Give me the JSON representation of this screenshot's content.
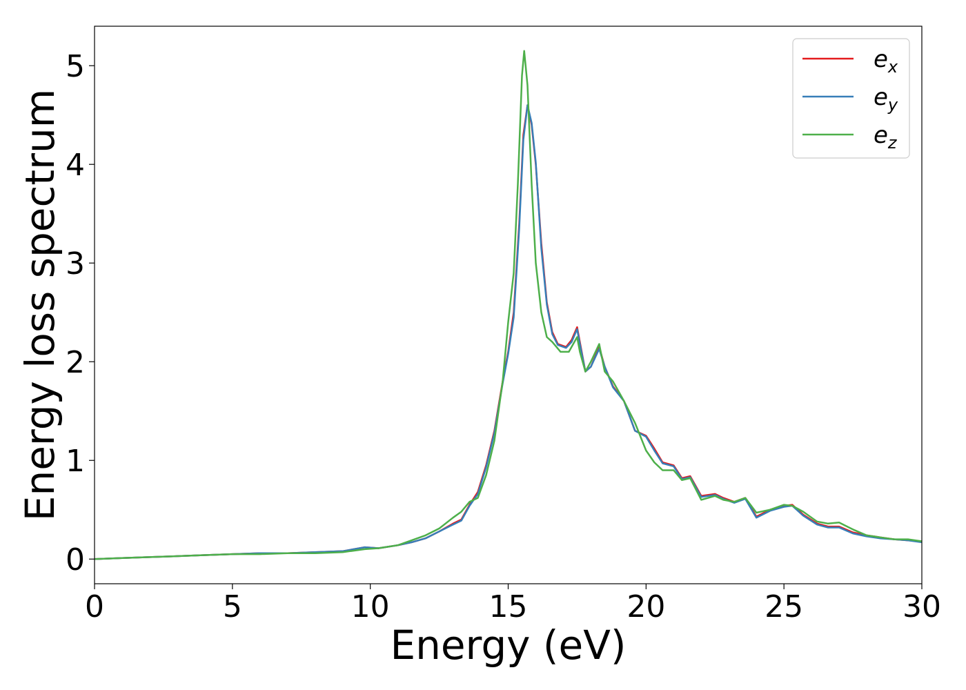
{
  "chart_data": {
    "type": "line",
    "xlabel": "Energy (eV)",
    "ylabel": "Energy loss spectrum",
    "xlim": [
      0,
      30
    ],
    "ylim": [
      -0.25,
      5.4
    ],
    "xticks": [
      0,
      5,
      10,
      15,
      20,
      25,
      30
    ],
    "yticks": [
      0,
      1,
      2,
      3,
      4,
      5
    ],
    "grid": false,
    "legend_position": "top-right",
    "series": [
      {
        "name": "e",
        "subscript": "x",
        "color": "#e41a1c",
        "points": [
          [
            0,
            0.0
          ],
          [
            1,
            0.01
          ],
          [
            2,
            0.02
          ],
          [
            3,
            0.03
          ],
          [
            4,
            0.04
          ],
          [
            5,
            0.05
          ],
          [
            6,
            0.06
          ],
          [
            7,
            0.06
          ],
          [
            8,
            0.07
          ],
          [
            9,
            0.08
          ],
          [
            9.8,
            0.12
          ],
          [
            10.3,
            0.11
          ],
          [
            11,
            0.14
          ],
          [
            11.5,
            0.17
          ],
          [
            12,
            0.21
          ],
          [
            12.5,
            0.28
          ],
          [
            13,
            0.36
          ],
          [
            13.3,
            0.4
          ],
          [
            13.6,
            0.55
          ],
          [
            13.9,
            0.68
          ],
          [
            14.2,
            0.95
          ],
          [
            14.5,
            1.3
          ],
          [
            14.8,
            1.8
          ],
          [
            15.0,
            2.1
          ],
          [
            15.2,
            2.5
          ],
          [
            15.4,
            3.4
          ],
          [
            15.55,
            4.3
          ],
          [
            15.7,
            4.6
          ],
          [
            15.85,
            4.4
          ],
          [
            16.0,
            4.0
          ],
          [
            16.2,
            3.2
          ],
          [
            16.4,
            2.6
          ],
          [
            16.6,
            2.3
          ],
          [
            16.8,
            2.18
          ],
          [
            17.1,
            2.15
          ],
          [
            17.3,
            2.22
          ],
          [
            17.5,
            2.35
          ],
          [
            17.6,
            2.2
          ],
          [
            17.8,
            1.9
          ],
          [
            18.0,
            1.95
          ],
          [
            18.3,
            2.15
          ],
          [
            18.5,
            1.95
          ],
          [
            18.8,
            1.75
          ],
          [
            19.2,
            1.6
          ],
          [
            19.6,
            1.3
          ],
          [
            20.0,
            1.25
          ],
          [
            20.3,
            1.12
          ],
          [
            20.6,
            0.98
          ],
          [
            21.0,
            0.95
          ],
          [
            21.3,
            0.82
          ],
          [
            21.6,
            0.84
          ],
          [
            22.0,
            0.64
          ],
          [
            22.5,
            0.66
          ],
          [
            22.8,
            0.62
          ],
          [
            23.2,
            0.58
          ],
          [
            23.6,
            0.62
          ],
          [
            24.0,
            0.43
          ],
          [
            24.5,
            0.5
          ],
          [
            25.0,
            0.54
          ],
          [
            25.3,
            0.55
          ],
          [
            25.7,
            0.45
          ],
          [
            26.2,
            0.36
          ],
          [
            26.6,
            0.33
          ],
          [
            27.0,
            0.33
          ],
          [
            27.5,
            0.27
          ],
          [
            28.0,
            0.24
          ],
          [
            28.5,
            0.22
          ],
          [
            29.0,
            0.2
          ],
          [
            29.5,
            0.19
          ],
          [
            30.0,
            0.18
          ]
        ]
      },
      {
        "name": "e",
        "subscript": "y",
        "color": "#377eb8",
        "points": [
          [
            0,
            0.0
          ],
          [
            1,
            0.01
          ],
          [
            2,
            0.02
          ],
          [
            3,
            0.03
          ],
          [
            4,
            0.04
          ],
          [
            5,
            0.05
          ],
          [
            6,
            0.06
          ],
          [
            7,
            0.06
          ],
          [
            8,
            0.07
          ],
          [
            9,
            0.08
          ],
          [
            9.8,
            0.12
          ],
          [
            10.3,
            0.11
          ],
          [
            11,
            0.14
          ],
          [
            11.5,
            0.17
          ],
          [
            12,
            0.21
          ],
          [
            12.5,
            0.28
          ],
          [
            13,
            0.35
          ],
          [
            13.3,
            0.39
          ],
          [
            13.6,
            0.54
          ],
          [
            13.9,
            0.66
          ],
          [
            14.2,
            0.93
          ],
          [
            14.5,
            1.28
          ],
          [
            14.8,
            1.78
          ],
          [
            15.0,
            2.08
          ],
          [
            15.2,
            2.45
          ],
          [
            15.4,
            3.35
          ],
          [
            15.55,
            4.25
          ],
          [
            15.7,
            4.6
          ],
          [
            15.85,
            4.42
          ],
          [
            16.0,
            4.02
          ],
          [
            16.2,
            3.15
          ],
          [
            16.4,
            2.58
          ],
          [
            16.6,
            2.28
          ],
          [
            16.8,
            2.17
          ],
          [
            17.1,
            2.14
          ],
          [
            17.3,
            2.2
          ],
          [
            17.5,
            2.33
          ],
          [
            17.6,
            2.18
          ],
          [
            17.8,
            1.9
          ],
          [
            18.0,
            1.95
          ],
          [
            18.3,
            2.13
          ],
          [
            18.5,
            1.95
          ],
          [
            18.8,
            1.74
          ],
          [
            19.2,
            1.6
          ],
          [
            19.6,
            1.3
          ],
          [
            20.0,
            1.24
          ],
          [
            20.3,
            1.1
          ],
          [
            20.6,
            0.97
          ],
          [
            21.0,
            0.94
          ],
          [
            21.3,
            0.81
          ],
          [
            21.6,
            0.83
          ],
          [
            22.0,
            0.63
          ],
          [
            22.5,
            0.65
          ],
          [
            22.8,
            0.61
          ],
          [
            23.2,
            0.57
          ],
          [
            23.6,
            0.61
          ],
          [
            24.0,
            0.42
          ],
          [
            24.5,
            0.49
          ],
          [
            25.0,
            0.53
          ],
          [
            25.3,
            0.54
          ],
          [
            25.7,
            0.44
          ],
          [
            26.2,
            0.35
          ],
          [
            26.6,
            0.32
          ],
          [
            27.0,
            0.32
          ],
          [
            27.5,
            0.26
          ],
          [
            28.0,
            0.23
          ],
          [
            28.5,
            0.21
          ],
          [
            29.0,
            0.2
          ],
          [
            29.5,
            0.19
          ],
          [
            30.0,
            0.17
          ]
        ]
      },
      {
        "name": "e",
        "subscript": "z",
        "color": "#4daf4a",
        "points": [
          [
            0,
            0.0
          ],
          [
            1,
            0.01
          ],
          [
            2,
            0.02
          ],
          [
            3,
            0.03
          ],
          [
            4,
            0.04
          ],
          [
            5,
            0.05
          ],
          [
            6,
            0.05
          ],
          [
            7,
            0.06
          ],
          [
            8,
            0.06
          ],
          [
            9,
            0.07
          ],
          [
            9.8,
            0.1
          ],
          [
            10.3,
            0.11
          ],
          [
            11,
            0.14
          ],
          [
            11.5,
            0.19
          ],
          [
            12,
            0.24
          ],
          [
            12.5,
            0.31
          ],
          [
            13,
            0.42
          ],
          [
            13.3,
            0.48
          ],
          [
            13.6,
            0.58
          ],
          [
            13.9,
            0.62
          ],
          [
            14.2,
            0.85
          ],
          [
            14.5,
            1.2
          ],
          [
            14.8,
            1.8
          ],
          [
            15.0,
            2.4
          ],
          [
            15.2,
            2.9
          ],
          [
            15.35,
            3.8
          ],
          [
            15.5,
            4.9
          ],
          [
            15.58,
            5.15
          ],
          [
            15.7,
            4.8
          ],
          [
            15.85,
            3.8
          ],
          [
            16.0,
            3.0
          ],
          [
            16.2,
            2.5
          ],
          [
            16.4,
            2.25
          ],
          [
            16.6,
            2.2
          ],
          [
            16.9,
            2.1
          ],
          [
            17.2,
            2.1
          ],
          [
            17.5,
            2.25
          ],
          [
            17.6,
            2.1
          ],
          [
            17.8,
            1.9
          ],
          [
            18.0,
            2.0
          ],
          [
            18.3,
            2.18
          ],
          [
            18.5,
            1.9
          ],
          [
            18.8,
            1.8
          ],
          [
            19.2,
            1.6
          ],
          [
            19.6,
            1.38
          ],
          [
            20.0,
            1.1
          ],
          [
            20.3,
            0.98
          ],
          [
            20.6,
            0.9
          ],
          [
            21.0,
            0.9
          ],
          [
            21.3,
            0.8
          ],
          [
            21.6,
            0.82
          ],
          [
            22.0,
            0.6
          ],
          [
            22.5,
            0.64
          ],
          [
            22.8,
            0.6
          ],
          [
            23.2,
            0.58
          ],
          [
            23.6,
            0.62
          ],
          [
            24.0,
            0.47
          ],
          [
            24.5,
            0.5
          ],
          [
            25.0,
            0.55
          ],
          [
            25.3,
            0.54
          ],
          [
            25.7,
            0.48
          ],
          [
            26.2,
            0.38
          ],
          [
            26.6,
            0.36
          ],
          [
            27.0,
            0.37
          ],
          [
            27.5,
            0.3
          ],
          [
            28.0,
            0.24
          ],
          [
            28.5,
            0.22
          ],
          [
            29.0,
            0.2
          ],
          [
            29.5,
            0.2
          ],
          [
            30.0,
            0.18
          ]
        ]
      }
    ]
  }
}
